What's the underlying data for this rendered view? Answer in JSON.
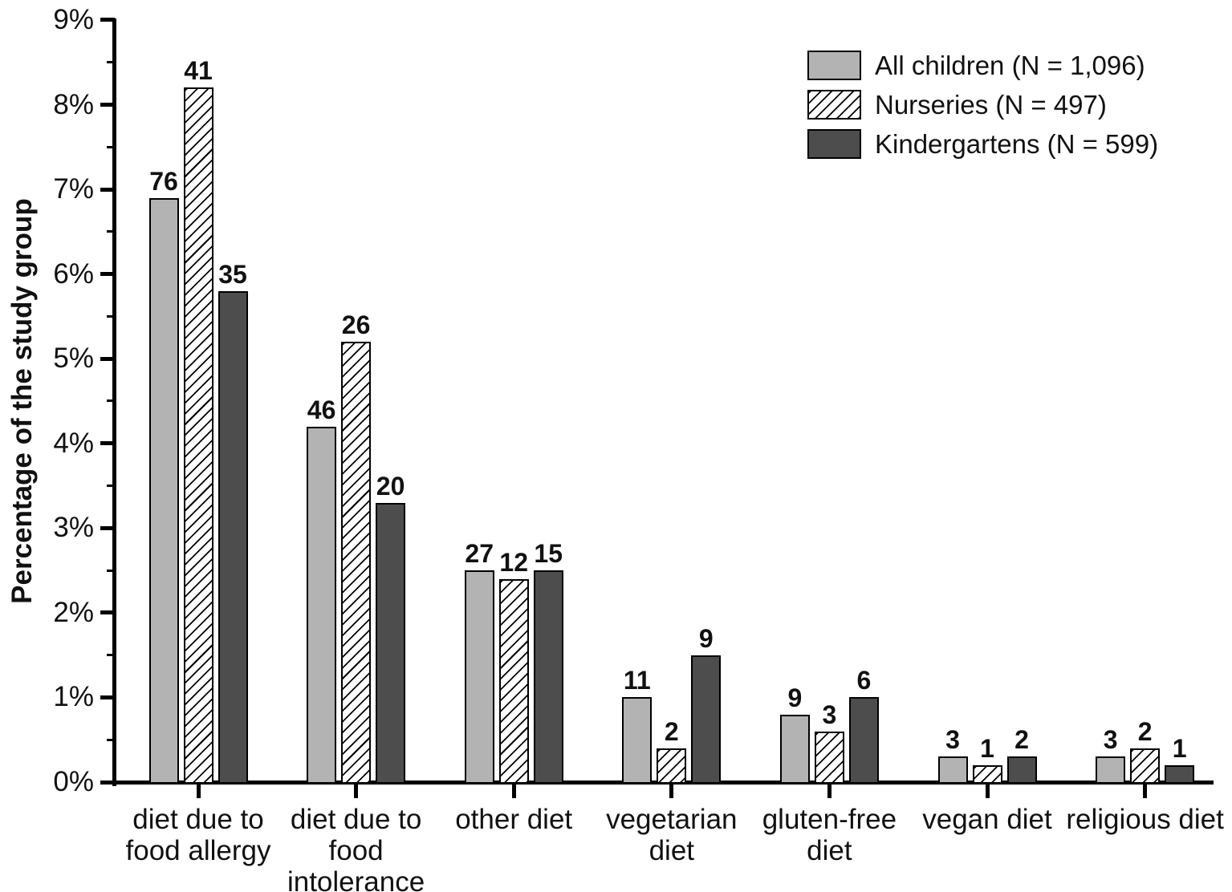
{
  "chart_data": {
    "type": "bar",
    "title": "",
    "xlabel": "",
    "ylabel": "Percentage of the study group",
    "ylim": [
      0,
      9
    ],
    "y_major_step": 1,
    "y_minor_step": 0.5,
    "y_tick_labels": [
      "0%",
      "1%",
      "2%",
      "3%",
      "4%",
      "5%",
      "6%",
      "7%",
      "8%",
      "9%"
    ],
    "grid": false,
    "legend_position": "top-right",
    "categories": [
      {
        "label": "diet due to food allergy",
        "lines": [
          "diet due to",
          "food allergy"
        ]
      },
      {
        "label": "diet due to food intolerance",
        "lines": [
          "diet due to",
          "food",
          "intolerance"
        ]
      },
      {
        "label": "other diet",
        "lines": [
          "other diet"
        ]
      },
      {
        "label": "vegetarian diet",
        "lines": [
          "vegetarian",
          "diet"
        ]
      },
      {
        "label": "gluten-free diet",
        "lines": [
          "gluten-free",
          "diet"
        ]
      },
      {
        "label": "vegan diet",
        "lines": [
          "vegan diet"
        ]
      },
      {
        "label": "religious diet",
        "lines": [
          "religious diet"
        ]
      }
    ],
    "series": [
      {
        "name": "All children (N = 1,096)",
        "short_name": "All children",
        "n": 1096,
        "style": "solid-light",
        "counts": [
          76,
          46,
          27,
          11,
          9,
          3,
          3
        ],
        "percents": [
          6.9,
          4.2,
          2.5,
          1.0,
          0.8,
          0.3,
          0.3
        ]
      },
      {
        "name": "Nurseries (N = 497)",
        "short_name": "Nurseries",
        "n": 497,
        "style": "hatched",
        "counts": [
          41,
          26,
          12,
          2,
          3,
          1,
          2
        ],
        "percents": [
          8.2,
          5.2,
          2.4,
          0.4,
          0.6,
          0.2,
          0.4
        ]
      },
      {
        "name": "Kindergartens (N = 599)",
        "short_name": "Kindergartens",
        "n": 599,
        "style": "solid-dark",
        "counts": [
          35,
          20,
          15,
          9,
          6,
          2,
          1
        ],
        "percents": [
          5.8,
          3.3,
          2.5,
          1.5,
          1.0,
          0.3,
          0.2
        ]
      }
    ],
    "colors": {
      "light_gray": "#b3b3b3",
      "dark_gray": "#4d4d4d",
      "hatch_line": "#000000",
      "hatch_background": "#ffffff",
      "axis": "#000000",
      "text": "#111111",
      "background": "#ffffff"
    }
  }
}
